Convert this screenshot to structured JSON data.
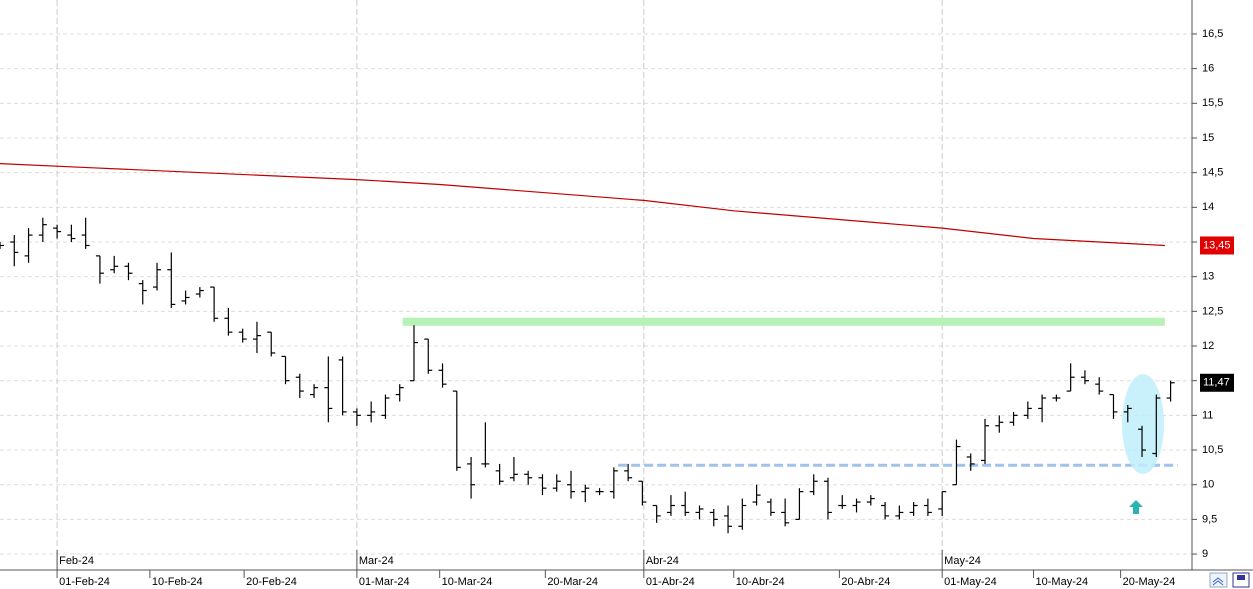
{
  "chart_data": {
    "type": "ohlc",
    "color": "#000000",
    "x": [
      -4,
      -3,
      -2,
      -1,
      0,
      1,
      2,
      3,
      4,
      5,
      6,
      7,
      8,
      9,
      10,
      11,
      12,
      13,
      14,
      15,
      16,
      17,
      18,
      19,
      20,
      21,
      22,
      23,
      24,
      25,
      26,
      27,
      28,
      29,
      30,
      31,
      32,
      33,
      34,
      35,
      36,
      37,
      38,
      39,
      40,
      41,
      42,
      43,
      44,
      45,
      46,
      47,
      48,
      49,
      50,
      51,
      52,
      53,
      54,
      55,
      56,
      57,
      58,
      59,
      60,
      61,
      62,
      63,
      64,
      65,
      66,
      67,
      68,
      69,
      70,
      71,
      72,
      73,
      74,
      75,
      76,
      77,
      78
    ],
    "open": [
      13.45,
      13.5,
      13.3,
      13.6,
      13.7,
      13.6,
      13.6,
      13.3,
      13.1,
      13.15,
      12.9,
      12.85,
      13.1,
      12.65,
      12.75,
      12.85,
      12.4,
      12.2,
      12.1,
      12.2,
      11.85,
      11.55,
      11.3,
      11.4,
      11.8,
      11.05,
      11.0,
      11.0,
      11.3,
      11.5,
      12.1,
      11.65,
      11.35,
      10.3,
      10.3,
      10.2,
      10.1,
      10.15,
      10.1,
      9.95,
      10.0,
      9.9,
      9.9,
      9.9,
      10.2,
      10.05,
      9.7,
      9.6,
      9.7,
      9.6,
      9.6,
      9.55,
      9.4,
      9.75,
      9.75,
      9.6,
      9.5,
      9.9,
      10.05,
      9.7,
      9.7,
      9.75,
      9.7,
      9.55,
      9.6,
      9.7,
      9.65,
      10.0,
      10.4,
      10.35,
      10.85,
      10.9,
      11.0,
      11.1,
      11.25,
      11.35,
      11.55,
      11.45,
      11.3,
      11.05,
      10.8,
      10.45,
      11.25
    ],
    "high": [
      13.5,
      13.6,
      13.7,
      13.85,
      13.75,
      13.75,
      13.85,
      13.3,
      13.3,
      13.2,
      12.95,
      13.2,
      13.35,
      12.8,
      12.85,
      12.85,
      12.55,
      12.25,
      12.35,
      12.2,
      11.85,
      11.6,
      11.45,
      11.85,
      11.85,
      11.1,
      11.2,
      11.3,
      11.45,
      12.3,
      12.1,
      11.75,
      11.35,
      10.4,
      10.9,
      10.3,
      10.4,
      10.2,
      10.15,
      10.15,
      10.2,
      10.0,
      9.95,
      10.25,
      10.3,
      10.05,
      9.7,
      9.85,
      9.9,
      9.7,
      9.65,
      9.7,
      9.8,
      10.0,
      9.8,
      9.8,
      9.95,
      10.15,
      10.1,
      9.85,
      9.8,
      9.85,
      9.75,
      9.7,
      9.75,
      9.8,
      9.9,
      10.65,
      10.45,
      10.95,
      11.0,
      11.05,
      11.2,
      11.3,
      11.3,
      11.75,
      11.65,
      11.55,
      11.3,
      11.15,
      10.85,
      11.3,
      11.5
    ],
    "low": [
      13.4,
      13.15,
      13.2,
      13.5,
      13.55,
      13.5,
      13.4,
      12.9,
      13.05,
      12.95,
      12.6,
      12.8,
      12.55,
      12.6,
      12.7,
      12.35,
      12.15,
      12.05,
      11.9,
      11.85,
      11.45,
      11.25,
      11.25,
      10.9,
      11.0,
      10.85,
      10.9,
      10.95,
      11.2,
      11.5,
      11.6,
      11.4,
      10.2,
      9.8,
      10.25,
      10.0,
      10.05,
      10.0,
      9.85,
      9.9,
      9.8,
      9.75,
      9.85,
      9.8,
      10.05,
      9.7,
      9.45,
      9.55,
      9.55,
      9.5,
      9.4,
      9.3,
      9.35,
      9.7,
      9.55,
      9.4,
      9.5,
      9.85,
      9.5,
      9.65,
      9.6,
      9.7,
      9.5,
      9.5,
      9.55,
      9.55,
      9.55,
      10.0,
      10.2,
      10.3,
      10.75,
      10.85,
      10.95,
      10.9,
      11.2,
      11.35,
      11.45,
      11.3,
      10.95,
      10.9,
      10.4,
      10.4,
      11.2
    ],
    "close": [
      13.45,
      13.35,
      13.6,
      13.75,
      13.65,
      13.55,
      13.45,
      13.05,
      13.15,
      13.05,
      12.8,
      13.1,
      12.6,
      12.7,
      12.8,
      12.4,
      12.2,
      12.1,
      12.15,
      11.9,
      11.5,
      11.35,
      11.4,
      11.1,
      11.05,
      11.0,
      11.05,
      11.25,
      11.4,
      12.05,
      11.65,
      11.45,
      10.25,
      10.0,
      10.3,
      10.05,
      10.15,
      10.1,
      9.95,
      10.05,
      9.9,
      9.95,
      9.9,
      10.2,
      10.1,
      9.75,
      9.55,
      9.7,
      9.6,
      9.65,
      9.5,
      9.4,
      9.7,
      9.85,
      9.6,
      9.45,
      9.9,
      10.05,
      9.6,
      9.7,
      9.75,
      9.8,
      9.55,
      9.6,
      9.7,
      9.6,
      9.9,
      10.55,
      10.3,
      10.85,
      10.9,
      11.0,
      11.1,
      11.25,
      11.25,
      11.55,
      11.5,
      11.35,
      11.05,
      11.1,
      10.5,
      11.25,
      11.47
    ],
    "moving_average": {
      "color": "#c00000",
      "x": [
        -4,
        2.5,
        21,
        26.8,
        41.1,
        47.4,
        62,
        68.4,
        77.6
      ],
      "values": [
        14.63,
        14.57,
        14.4,
        14.33,
        14.1,
        13.95,
        13.7,
        13.55,
        13.45
      ]
    },
    "levels": [
      {
        "value": 12.35,
        "from": 24.2,
        "to": 77.6,
        "color": "#b6f2b6"
      },
      {
        "value": 10.28,
        "from": 39.3,
        "to": 78.5,
        "color": "#9fc3ea"
      }
    ],
    "price_labels": [
      {
        "value": 13.45,
        "label": "13,45",
        "color": "#e00000"
      },
      {
        "value": 11.47,
        "label": "11,47",
        "color": "#000000"
      }
    ],
    "xlim": [
      -4,
      79.5
    ],
    "ylim": [
      8.77,
      16.99
    ],
    "yticks": [
      {
        "value": 9,
        "label": "9"
      },
      {
        "value": 9.5,
        "label": "9,5"
      },
      {
        "value": 10,
        "label": "10"
      },
      {
        "value": 10.5,
        "label": "10,5"
      },
      {
        "value": 11,
        "label": "11"
      },
      {
        "value": 11.5,
        "label": "11,5"
      },
      {
        "value": 12,
        "label": "12"
      },
      {
        "value": 12.5,
        "label": "12,5"
      },
      {
        "value": 13,
        "label": "13"
      },
      {
        "value": 13.5,
        "label": "13,5"
      },
      {
        "value": 14,
        "label": "14"
      },
      {
        "value": 14.5,
        "label": "14,5"
      },
      {
        "value": 15,
        "label": "15"
      },
      {
        "value": 15.5,
        "label": "15,5"
      },
      {
        "value": 16,
        "label": "16"
      },
      {
        "value": 16.5,
        "label": "16,5"
      }
    ],
    "xticks": [
      {
        "value": 0,
        "label": "01-Feb-24"
      },
      {
        "value": 6.5,
        "label": "10-Feb-24"
      },
      {
        "value": 13.1,
        "label": "20-Feb-24"
      },
      {
        "value": 21,
        "label": "01-Mar-24"
      },
      {
        "value": 26.8,
        "label": "10-Mar-24"
      },
      {
        "value": 34.2,
        "label": "20-Mar-24"
      },
      {
        "value": 41.1,
        "label": "01-Abr-24"
      },
      {
        "value": 47.4,
        "label": "10-Abr-24"
      },
      {
        "value": 54.8,
        "label": "20-Abr-24"
      },
      {
        "value": 62,
        "label": "01-May-24"
      },
      {
        "value": 68.4,
        "label": "10-May-24"
      },
      {
        "value": 74.5,
        "label": "20-May-24"
      }
    ],
    "month_ticks": [
      {
        "value": 0,
        "label": "Feb-24"
      },
      {
        "value": 21,
        "label": "Mar-24"
      },
      {
        "value": 41.1,
        "label": "Abr-24"
      },
      {
        "value": 62,
        "label": "May-24"
      }
    ],
    "grid": true
  }
}
